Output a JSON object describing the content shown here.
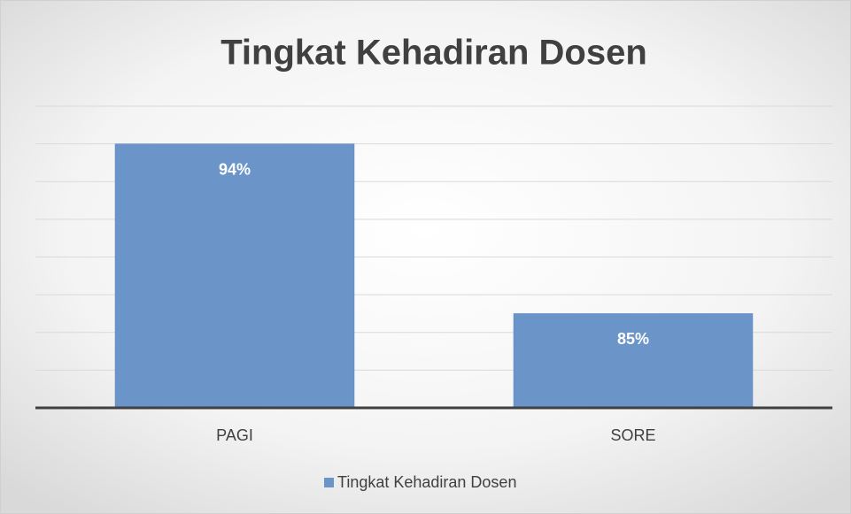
{
  "chart_data": {
    "type": "bar",
    "title": "Tingkat Kehadiran Dosen",
    "categories": [
      "PAGI",
      "SORE"
    ],
    "series": [
      {
        "name": "Tingkat Kehadiran Dosen",
        "color": "#6b95c9",
        "values": [
          94,
          85
        ],
        "value_labels": [
          "94%",
          "85%"
        ]
      }
    ],
    "ylim": [
      80,
      96
    ],
    "yticks": [
      80,
      82,
      84,
      86,
      88,
      90,
      92,
      94,
      96
    ],
    "grid": true,
    "legend": "bottom"
  }
}
